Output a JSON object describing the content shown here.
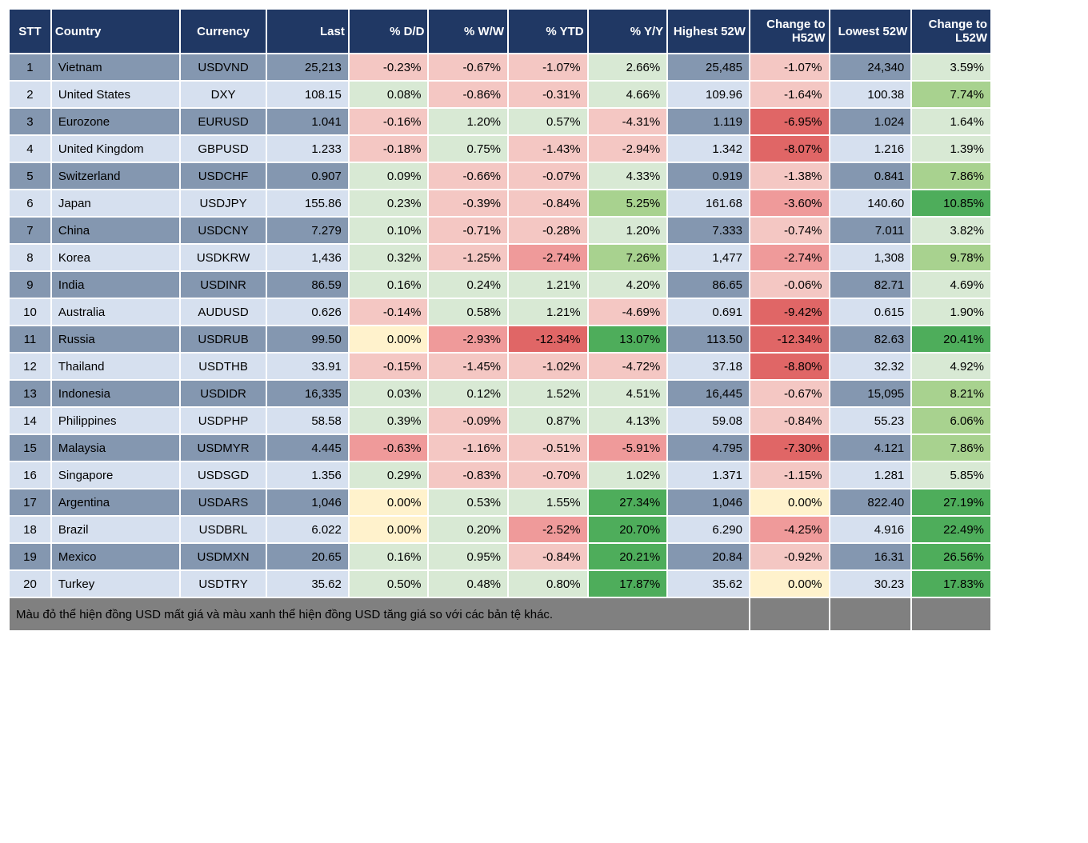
{
  "table": {
    "headers": [
      "STT",
      "Country",
      "Currency",
      "Last",
      "% D/D",
      "% W/W",
      "% YTD",
      "% Y/Y",
      "Highest 52W",
      "Change to H52W",
      "Lowest 52W",
      "Change to L52W"
    ],
    "footer_note": "Màu đỏ thể hiện đồng USD mất giá và màu xanh thể hiện đồng USD tăng giá so với các bản tệ khác.",
    "palette": {
      "header_bg": "#203864",
      "header_fg": "#ffffff",
      "band_dark": "#8497b0",
      "band_light": "#d6e0ef",
      "green_strong": "#4ead5b",
      "green_mid": "#a8d28f",
      "green_light": "#d8e9d4",
      "red_strong": "#e06666",
      "red_mid": "#ef9a9a",
      "red_light": "#f4c7c3",
      "neutral_yellow": "#fff2cc",
      "footer_bg": "#808080"
    },
    "rows": [
      {
        "stt": "1",
        "country": "Vietnam",
        "currency": "USDVND",
        "last": "25,213",
        "dd": {
          "v": "-0.23%",
          "c": "#f4c7c3"
        },
        "ww": {
          "v": "-0.67%",
          "c": "#f4c7c3"
        },
        "ytd": {
          "v": "-1.07%",
          "c": "#f4c7c3"
        },
        "yy": {
          "v": "2.66%",
          "c": "#d8e9d4"
        },
        "h52": "25,485",
        "ch52": {
          "v": "-1.07%",
          "c": "#f4c7c3"
        },
        "l52": "24,340",
        "cl52": {
          "v": "3.59%",
          "c": "#d8e9d4"
        }
      },
      {
        "stt": "2",
        "country": "United States",
        "currency": "DXY",
        "last": "108.15",
        "dd": {
          "v": "0.08%",
          "c": "#d8e9d4"
        },
        "ww": {
          "v": "-0.86%",
          "c": "#f4c7c3"
        },
        "ytd": {
          "v": "-0.31%",
          "c": "#f4c7c3"
        },
        "yy": {
          "v": "4.66%",
          "c": "#d8e9d4"
        },
        "h52": "109.96",
        "ch52": {
          "v": "-1.64%",
          "c": "#f4c7c3"
        },
        "l52": "100.38",
        "cl52": {
          "v": "7.74%",
          "c": "#a8d28f"
        }
      },
      {
        "stt": "3",
        "country": "Eurozone",
        "currency": "EURUSD",
        "last": "1.041",
        "dd": {
          "v": "-0.16%",
          "c": "#f4c7c3"
        },
        "ww": {
          "v": "1.20%",
          "c": "#d8e9d4"
        },
        "ytd": {
          "v": "0.57%",
          "c": "#d8e9d4"
        },
        "yy": {
          "v": "-4.31%",
          "c": "#f4c7c3"
        },
        "h52": "1.119",
        "ch52": {
          "v": "-6.95%",
          "c": "#e06666"
        },
        "l52": "1.024",
        "cl52": {
          "v": "1.64%",
          "c": "#d8e9d4"
        }
      },
      {
        "stt": "4",
        "country": "United Kingdom",
        "currency": "GBPUSD",
        "last": "1.233",
        "dd": {
          "v": "-0.18%",
          "c": "#f4c7c3"
        },
        "ww": {
          "v": "0.75%",
          "c": "#d8e9d4"
        },
        "ytd": {
          "v": "-1.43%",
          "c": "#f4c7c3"
        },
        "yy": {
          "v": "-2.94%",
          "c": "#f4c7c3"
        },
        "h52": "1.342",
        "ch52": {
          "v": "-8.07%",
          "c": "#e06666"
        },
        "l52": "1.216",
        "cl52": {
          "v": "1.39%",
          "c": "#d8e9d4"
        }
      },
      {
        "stt": "5",
        "country": "Switzerland",
        "currency": "USDCHF",
        "last": "0.907",
        "dd": {
          "v": "0.09%",
          "c": "#d8e9d4"
        },
        "ww": {
          "v": "-0.66%",
          "c": "#f4c7c3"
        },
        "ytd": {
          "v": "-0.07%",
          "c": "#f4c7c3"
        },
        "yy": {
          "v": "4.33%",
          "c": "#d8e9d4"
        },
        "h52": "0.919",
        "ch52": {
          "v": "-1.38%",
          "c": "#f4c7c3"
        },
        "l52": "0.841",
        "cl52": {
          "v": "7.86%",
          "c": "#a8d28f"
        }
      },
      {
        "stt": "6",
        "country": "Japan",
        "currency": "USDJPY",
        "last": "155.86",
        "dd": {
          "v": "0.23%",
          "c": "#d8e9d4"
        },
        "ww": {
          "v": "-0.39%",
          "c": "#f4c7c3"
        },
        "ytd": {
          "v": "-0.84%",
          "c": "#f4c7c3"
        },
        "yy": {
          "v": "5.25%",
          "c": "#a8d28f"
        },
        "h52": "161.68",
        "ch52": {
          "v": "-3.60%",
          "c": "#ef9a9a"
        },
        "l52": "140.60",
        "cl52": {
          "v": "10.85%",
          "c": "#4ead5b"
        }
      },
      {
        "stt": "7",
        "country": "China",
        "currency": "USDCNY",
        "last": "7.279",
        "dd": {
          "v": "0.10%",
          "c": "#d8e9d4"
        },
        "ww": {
          "v": "-0.71%",
          "c": "#f4c7c3"
        },
        "ytd": {
          "v": "-0.28%",
          "c": "#f4c7c3"
        },
        "yy": {
          "v": "1.20%",
          "c": "#d8e9d4"
        },
        "h52": "7.333",
        "ch52": {
          "v": "-0.74%",
          "c": "#f4c7c3"
        },
        "l52": "7.011",
        "cl52": {
          "v": "3.82%",
          "c": "#d8e9d4"
        }
      },
      {
        "stt": "8",
        "country": "Korea",
        "currency": "USDKRW",
        "last": "1,436",
        "dd": {
          "v": "0.32%",
          "c": "#d8e9d4"
        },
        "ww": {
          "v": "-1.25%",
          "c": "#f4c7c3"
        },
        "ytd": {
          "v": "-2.74%",
          "c": "#ef9a9a"
        },
        "yy": {
          "v": "7.26%",
          "c": "#a8d28f"
        },
        "h52": "1,477",
        "ch52": {
          "v": "-2.74%",
          "c": "#ef9a9a"
        },
        "l52": "1,308",
        "cl52": {
          "v": "9.78%",
          "c": "#a8d28f"
        }
      },
      {
        "stt": "9",
        "country": "India",
        "currency": "USDINR",
        "last": "86.59",
        "dd": {
          "v": "0.16%",
          "c": "#d8e9d4"
        },
        "ww": {
          "v": "0.24%",
          "c": "#d8e9d4"
        },
        "ytd": {
          "v": "1.21%",
          "c": "#d8e9d4"
        },
        "yy": {
          "v": "4.20%",
          "c": "#d8e9d4"
        },
        "h52": "86.65",
        "ch52": {
          "v": "-0.06%",
          "c": "#f4c7c3"
        },
        "l52": "82.71",
        "cl52": {
          "v": "4.69%",
          "c": "#d8e9d4"
        }
      },
      {
        "stt": "10",
        "country": "Australia",
        "currency": "AUDUSD",
        "last": "0.626",
        "dd": {
          "v": "-0.14%",
          "c": "#f4c7c3"
        },
        "ww": {
          "v": "0.58%",
          "c": "#d8e9d4"
        },
        "ytd": {
          "v": "1.21%",
          "c": "#d8e9d4"
        },
        "yy": {
          "v": "-4.69%",
          "c": "#f4c7c3"
        },
        "h52": "0.691",
        "ch52": {
          "v": "-9.42%",
          "c": "#e06666"
        },
        "l52": "0.615",
        "cl52": {
          "v": "1.90%",
          "c": "#d8e9d4"
        }
      },
      {
        "stt": "11",
        "country": "Russia",
        "currency": "USDRUB",
        "last": "99.50",
        "dd": {
          "v": "0.00%",
          "c": "#fff2cc"
        },
        "ww": {
          "v": "-2.93%",
          "c": "#ef9a9a"
        },
        "ytd": {
          "v": "-12.34%",
          "c": "#e06666"
        },
        "yy": {
          "v": "13.07%",
          "c": "#4ead5b"
        },
        "h52": "113.50",
        "ch52": {
          "v": "-12.34%",
          "c": "#e06666"
        },
        "l52": "82.63",
        "cl52": {
          "v": "20.41%",
          "c": "#4ead5b"
        }
      },
      {
        "stt": "12",
        "country": "Thailand",
        "currency": "USDTHB",
        "last": "33.91",
        "dd": {
          "v": "-0.15%",
          "c": "#f4c7c3"
        },
        "ww": {
          "v": "-1.45%",
          "c": "#f4c7c3"
        },
        "ytd": {
          "v": "-1.02%",
          "c": "#f4c7c3"
        },
        "yy": {
          "v": "-4.72%",
          "c": "#f4c7c3"
        },
        "h52": "37.18",
        "ch52": {
          "v": "-8.80%",
          "c": "#e06666"
        },
        "l52": "32.32",
        "cl52": {
          "v": "4.92%",
          "c": "#d8e9d4"
        }
      },
      {
        "stt": "13",
        "country": "Indonesia",
        "currency": "USDIDR",
        "last": "16,335",
        "dd": {
          "v": "0.03%",
          "c": "#d8e9d4"
        },
        "ww": {
          "v": "0.12%",
          "c": "#d8e9d4"
        },
        "ytd": {
          "v": "1.52%",
          "c": "#d8e9d4"
        },
        "yy": {
          "v": "4.51%",
          "c": "#d8e9d4"
        },
        "h52": "16,445",
        "ch52": {
          "v": "-0.67%",
          "c": "#f4c7c3"
        },
        "l52": "15,095",
        "cl52": {
          "v": "8.21%",
          "c": "#a8d28f"
        }
      },
      {
        "stt": "14",
        "country": "Philippines",
        "currency": "USDPHP",
        "last": "58.58",
        "dd": {
          "v": "0.39%",
          "c": "#d8e9d4"
        },
        "ww": {
          "v": "-0.09%",
          "c": "#f4c7c3"
        },
        "ytd": {
          "v": "0.87%",
          "c": "#d8e9d4"
        },
        "yy": {
          "v": "4.13%",
          "c": "#d8e9d4"
        },
        "h52": "59.08",
        "ch52": {
          "v": "-0.84%",
          "c": "#f4c7c3"
        },
        "l52": "55.23",
        "cl52": {
          "v": "6.06%",
          "c": "#a8d28f"
        }
      },
      {
        "stt": "15",
        "country": "Malaysia",
        "currency": "USDMYR",
        "last": "4.445",
        "dd": {
          "v": "-0.63%",
          "c": "#ef9a9a"
        },
        "ww": {
          "v": "-1.16%",
          "c": "#f4c7c3"
        },
        "ytd": {
          "v": "-0.51%",
          "c": "#f4c7c3"
        },
        "yy": {
          "v": "-5.91%",
          "c": "#ef9a9a"
        },
        "h52": "4.795",
        "ch52": {
          "v": "-7.30%",
          "c": "#e06666"
        },
        "l52": "4.121",
        "cl52": {
          "v": "7.86%",
          "c": "#a8d28f"
        }
      },
      {
        "stt": "16",
        "country": "Singapore",
        "currency": "USDSGD",
        "last": "1.356",
        "dd": {
          "v": "0.29%",
          "c": "#d8e9d4"
        },
        "ww": {
          "v": "-0.83%",
          "c": "#f4c7c3"
        },
        "ytd": {
          "v": "-0.70%",
          "c": "#f4c7c3"
        },
        "yy": {
          "v": "1.02%",
          "c": "#d8e9d4"
        },
        "h52": "1.371",
        "ch52": {
          "v": "-1.15%",
          "c": "#f4c7c3"
        },
        "l52": "1.281",
        "cl52": {
          "v": "5.85%",
          "c": "#d8e9d4"
        }
      },
      {
        "stt": "17",
        "country": "Argentina",
        "currency": "USDARS",
        "last": "1,046",
        "dd": {
          "v": "0.00%",
          "c": "#fff2cc"
        },
        "ww": {
          "v": "0.53%",
          "c": "#d8e9d4"
        },
        "ytd": {
          "v": "1.55%",
          "c": "#d8e9d4"
        },
        "yy": {
          "v": "27.34%",
          "c": "#4ead5b"
        },
        "h52": "1,046",
        "ch52": {
          "v": "0.00%",
          "c": "#fff2cc"
        },
        "l52": "822.40",
        "cl52": {
          "v": "27.19%",
          "c": "#4ead5b"
        }
      },
      {
        "stt": "18",
        "country": "Brazil",
        "currency": "USDBRL",
        "last": "6.022",
        "dd": {
          "v": "0.00%",
          "c": "#fff2cc"
        },
        "ww": {
          "v": "0.20%",
          "c": "#d8e9d4"
        },
        "ytd": {
          "v": "-2.52%",
          "c": "#ef9a9a"
        },
        "yy": {
          "v": "20.70%",
          "c": "#4ead5b"
        },
        "h52": "6.290",
        "ch52": {
          "v": "-4.25%",
          "c": "#ef9a9a"
        },
        "l52": "4.916",
        "cl52": {
          "v": "22.49%",
          "c": "#4ead5b"
        }
      },
      {
        "stt": "19",
        "country": "Mexico",
        "currency": "USDMXN",
        "last": "20.65",
        "dd": {
          "v": "0.16%",
          "c": "#d8e9d4"
        },
        "ww": {
          "v": "0.95%",
          "c": "#d8e9d4"
        },
        "ytd": {
          "v": "-0.84%",
          "c": "#f4c7c3"
        },
        "yy": {
          "v": "20.21%",
          "c": "#4ead5b"
        },
        "h52": "20.84",
        "ch52": {
          "v": "-0.92%",
          "c": "#f4c7c3"
        },
        "l52": "16.31",
        "cl52": {
          "v": "26.56%",
          "c": "#4ead5b"
        }
      },
      {
        "stt": "20",
        "country": "Turkey",
        "currency": "USDTRY",
        "last": "35.62",
        "dd": {
          "v": "0.50%",
          "c": "#d8e9d4"
        },
        "ww": {
          "v": "0.48%",
          "c": "#d8e9d4"
        },
        "ytd": {
          "v": "0.80%",
          "c": "#d8e9d4"
        },
        "yy": {
          "v": "17.87%",
          "c": "#4ead5b"
        },
        "h52": "35.62",
        "ch52": {
          "v": "0.00%",
          "c": "#fff2cc"
        },
        "l52": "30.23",
        "cl52": {
          "v": "17.83%",
          "c": "#4ead5b"
        }
      }
    ]
  }
}
